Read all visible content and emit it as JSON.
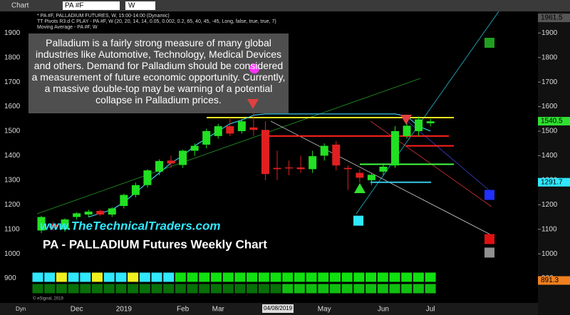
{
  "toolbar": {
    "app": "Chart",
    "symbol": "PA #F",
    "interval": "W"
  },
  "chart_data": {
    "type": "candlestick",
    "header_lines": [
      "* PA #F, PALLADIUM FUTURES, W, 15:00-14:00 (Dynamic)",
      "TT Pivots R3.d C PLAY - PA #F, W (20, 20, 14, 14, 0.05, 0.002, 0.2, 65, 40, 45, -45, Long, false, true, true, 7)",
      "Moving Average - PA #F, W"
    ],
    "annotation": "Palladium is a fairly strong measure of many global industries like Automotive, Technology, Medical Devices and others.  Demand for Palladium should be considered a measurement of future economic opportunity.  Currently, a massive double-top may be warning of a potential collapse in Palladium prices.",
    "website": "www.TheTechnicalTraders.com",
    "title": "PA - PALLADIUM Futures Weekly Chart",
    "copyright": "© eSignal, 2019",
    "x_mode": "Dyn",
    "cursor_date": "04/08/2019",
    "categories": [
      null,
      null,
      null,
      "Dec",
      null,
      null,
      null,
      "2019",
      null,
      null,
      null,
      null,
      "Feb",
      null,
      null,
      "Mar",
      null,
      null,
      null,
      "A",
      null,
      null,
      null,
      null,
      "May",
      null,
      null,
      null,
      null,
      "Jun",
      null,
      null,
      null,
      "Jul"
    ],
    "open": [
      1095,
      1120,
      1100,
      1150,
      1160,
      1175,
      1160,
      1195,
      1240,
      1280,
      1335,
      1380,
      1362,
      1420,
      1445,
      1480,
      1520,
      1500,
      1515,
      1505,
      1350,
      1352,
      1352,
      1345,
      1400,
      1445,
      1350,
      1330,
      1300,
      1335,
      1360,
      1480,
      1500,
      1532
    ],
    "high": [
      1155,
      1130,
      1145,
      1170,
      1180,
      1180,
      1190,
      1245,
      1290,
      1345,
      1385,
      1400,
      1425,
      1450,
      1510,
      1530,
      1555,
      1550,
      1580,
      1540,
      1420,
      1380,
      1400,
      1420,
      1450,
      1460,
      1360,
      1345,
      1330,
      1370,
      1520,
      1560,
      1560,
      1550
    ],
    "low": [
      1085,
      1095,
      1090,
      1140,
      1150,
      1155,
      1150,
      1185,
      1230,
      1270,
      1320,
      1350,
      1350,
      1400,
      1430,
      1470,
      1480,
      1490,
      1480,
      1300,
      1300,
      1320,
      1330,
      1330,
      1380,
      1340,
      1260,
      1290,
      1280,
      1320,
      1350,
      1470,
      1480,
      1520
    ],
    "close": [
      1150,
      1105,
      1140,
      1165,
      1172,
      1160,
      1185,
      1240,
      1280,
      1340,
      1378,
      1368,
      1420,
      1440,
      1500,
      1520,
      1490,
      1540,
      1505,
      1325,
      1345,
      1348,
      1345,
      1398,
      1440,
      1360,
      1345,
      1310,
      1322,
      1355,
      1500,
      1522,
      1548,
      1540
    ],
    "moving_average": {
      "color": "#36c8e8",
      "values": [
        null,
        null,
        null,
        null,
        1150,
        1165,
        1180,
        1210,
        1250,
        1290,
        1330,
        1370,
        1400,
        1440,
        1470,
        1500,
        1530,
        1545,
        1565,
        1570,
        1570,
        1570,
        1570,
        1570,
        1570,
        1570,
        1570,
        1570,
        1570,
        1570,
        1570,
        1560,
        1520,
        1500
      ]
    },
    "up_color": "#22e022",
    "down_color": "#e02020",
    "levels": [
      {
        "value": 1555,
        "color": "#f0f020"
      },
      {
        "value": 1480,
        "color": "#ff2020"
      },
      {
        "value": 1440,
        "color": "#ff2020"
      },
      {
        "value": 1365,
        "color": "#40ff40"
      },
      {
        "value": 1291.7,
        "color": "#36c8e8"
      }
    ],
    "targets": [
      {
        "value": 1860,
        "color": "#20a020"
      },
      {
        "value": 1240,
        "color": "#2030ff"
      },
      {
        "value": 1060,
        "color": "#e01010"
      },
      {
        "value": 1005,
        "color": "#909090"
      },
      {
        "value": 1135,
        "color": "#30e8ff"
      },
      {
        "value": 1755,
        "color": "#ff30ff"
      }
    ],
    "price_labels": [
      {
        "value": 1961.5,
        "label": "1961.5",
        "color": "#555"
      },
      {
        "value": 1540.5,
        "label": "1540.5",
        "color": "#30e030"
      },
      {
        "value": 1291.7,
        "label": "1291.7",
        "color": "#30e8ff"
      },
      {
        "value": 891.3,
        "label": "891.3",
        "color": "#f08020"
      }
    ],
    "ylim": [
      800,
      1985
    ],
    "yticks": [
      900,
      1000,
      1100,
      1200,
      1300,
      1400,
      1500,
      1600,
      1700,
      1800,
      1900
    ]
  }
}
